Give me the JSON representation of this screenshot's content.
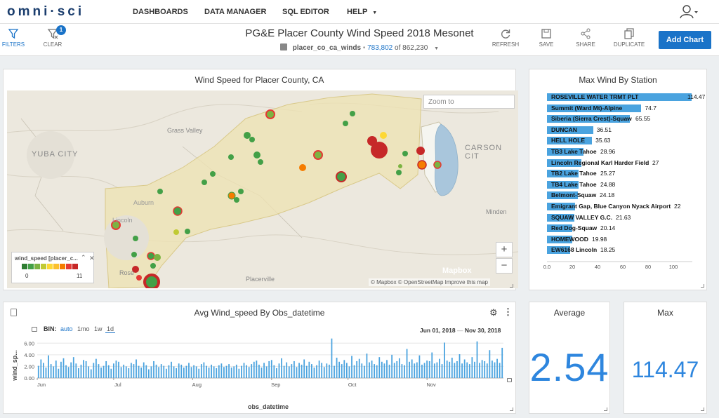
{
  "app": {
    "logo": "omni·sci",
    "nav": [
      "DASHBOARDS",
      "DATA MANAGER",
      "SQL EDITOR",
      "HELP"
    ]
  },
  "toolbar": {
    "filters_label": "FILTERS",
    "clear_label": "CLEAR",
    "filter_count": "1",
    "dashboard_title": "PG&E Placer County Wind Speed 2018 Mesonet",
    "table_name": "placer_co_ca_winds",
    "filtered_count": "783,802",
    "total_text": "of 862,230",
    "refresh_label": "REFRESH",
    "save_label": "SAVE",
    "share_label": "SHARE",
    "duplicate_label": "DUPLICATE",
    "add_chart_label": "Add Chart"
  },
  "map_panel": {
    "title": "Wind Speed for Placer County, CA",
    "zoom_placeholder": "Zoom to",
    "zoom_in": "+",
    "zoom_out": "−",
    "mapbox": "Mapbox",
    "attribution": "© Mapbox  © OpenStreetMap  Improve this map",
    "legend_title": "wind_speed [placer_c...",
    "legend_min": "0",
    "legend_max": "11",
    "legend_colors": [
      "#2e7d32",
      "#43a047",
      "#7cb342",
      "#c0ca33",
      "#fdd835",
      "#fbc02d",
      "#f57c00",
      "#e53935",
      "#c62828"
    ],
    "places": [
      "YUBA CITY",
      "Grass Valley",
      "CARSON CIT",
      "Minden",
      "Placerville",
      "Rose",
      "Auburn",
      "Lincoln"
    ]
  },
  "max_wind_panel": {
    "title": "Max Wind By Station",
    "axis_ticks": [
      "0.0",
      "20",
      "40",
      "60",
      "80",
      "100"
    ]
  },
  "timeseries_panel": {
    "title": "Avg Wind_speed By Obs_datetime",
    "bin_label": "BIN:",
    "bins": [
      "auto",
      "1mo",
      "1w",
      "1d"
    ],
    "active_bin": "1d",
    "range_start": "Jun 01, 2018",
    "range_sep": "—",
    "range_end": "Nov 30, 2018",
    "y_axis_label": "wind_sp...",
    "x_axis_label": "obs_datetime",
    "y_ticks": [
      "6.00",
      "4.00",
      "2.00",
      "0.00"
    ],
    "x_ticks": [
      "Jun",
      "Jul",
      "Aug",
      "Sep",
      "Oct",
      "Nov"
    ]
  },
  "average_panel": {
    "title": "Average",
    "value": "2.54"
  },
  "max_panel": {
    "title": "Max",
    "value": "114.47"
  },
  "chart_data": [
    {
      "type": "bar",
      "title": "Max Wind By Station",
      "orientation": "horizontal",
      "categories": [
        "ROSEVILLE WATER TRMT PLT",
        "Summit (Ward Mt)-Alpine",
        "Siberia (Sierra Crest)-Squaw",
        "DUNCAN",
        "HELL HOLE",
        "TB3 Lake Tahoe",
        "Lincoln Regional Karl Harder Field",
        "TB2 Lake Tahoe",
        "TB4 Lake Tahoe",
        "Belmont-Squaw",
        "Emigrant Gap, Blue Canyon Nyack Airport",
        "SQUAW VALLEY G.C.",
        "Red Dog-Squaw",
        "HOMEWOOD",
        "EW6168 Lincoln"
      ],
      "values": [
        114.47,
        74.7,
        65.55,
        36.51,
        35.63,
        28.96,
        27,
        25.27,
        24.88,
        24.18,
        22,
        21.63,
        20.14,
        19.98,
        18.25
      ],
      "value_labels": [
        "114.47",
        "74.7",
        "65.55",
        "36.51",
        "35.63",
        "28.96",
        "27",
        "25.27",
        "24.88",
        "24.18",
        "22",
        "21.63",
        "20.14",
        "19.98",
        "18.25"
      ],
      "xlim": [
        0,
        115
      ]
    },
    {
      "type": "bar",
      "title": "Avg Wind_speed By Obs_datetime",
      "xlabel": "obs_datetime",
      "ylabel": "wind_sp...",
      "ylim": [
        0,
        7
      ],
      "x_range": [
        "2018-06-01",
        "2018-11-30"
      ],
      "values": [
        2.1,
        3.2,
        2.6,
        1.8,
        3.9,
        2.4,
        2.0,
        3.0,
        1.6,
        2.8,
        3.4,
        2.2,
        1.9,
        2.7,
        3.6,
        2.5,
        1.7,
        2.3,
        3.1,
        2.9,
        2.0,
        1.5,
        2.6,
        3.3,
        2.4,
        1.8,
        2.1,
        2.9,
        2.2,
        1.6,
        2.5,
        3.0,
        2.8,
        1.9,
        2.3,
        2.0,
        1.7,
        2.6,
        2.4,
        3.2,
        2.1,
        1.8,
        2.7,
        2.2,
        1.5,
        2.0,
        2.9,
        2.3,
        1.9,
        2.4,
        2.1,
        1.6,
        2.2,
        2.8,
        2.0,
        1.7,
        2.5,
        2.3,
        1.8,
        2.1,
        2.6,
        1.9,
        2.2,
        2.0,
        1.6,
        2.4,
        2.7,
        2.1,
        1.8,
        2.3,
        2.0,
        1.7,
        2.2,
        2.5,
        1.9,
        2.1,
        2.4,
        1.8,
        2.0,
        2.3,
        1.6,
        2.1,
        2.6,
        2.2,
        1.9,
        2.4,
        2.8,
        3.0,
        2.3,
        1.8,
        2.6,
        2.0,
        2.9,
        3.1,
        2.2,
        1.7,
        2.5,
        3.4,
        2.1,
        2.7,
        2.0,
        2.4,
        2.9,
        1.9,
        2.6,
        2.3,
        3.2,
        2.1,
        2.8,
        2.4,
        1.8,
        2.2,
        3.0,
        2.6,
        1.9,
        2.5,
        2.3,
        6.8,
        2.1,
        3.5,
        2.8,
        2.4,
        3.1,
        2.6,
        2.0,
        3.8,
        2.2,
        2.9,
        3.3,
        2.5,
        2.1,
        4.2,
        2.7,
        3.0,
        2.4,
        2.2,
        3.6,
        2.8,
        2.5,
        3.1,
        2.3,
        4.0,
        2.6,
        2.9,
        3.4,
        2.4,
        2.2,
        5.0,
        2.8,
        3.2,
        2.5,
        2.7,
        3.9,
        2.3,
        2.6,
        3.0,
        2.9,
        4.4,
        2.5,
        2.7,
        3.3,
        2.4,
        6.1,
        3.0,
        2.8,
        3.5,
        2.6,
        2.9,
        4.1,
        2.5,
        3.2,
        2.7,
        2.4,
        3.6,
        2.8,
        6.3,
        2.6,
        3.1,
        2.9,
        2.5,
        4.8,
        3.0,
        2.7,
        3.3,
        2.6,
        5.2
      ]
    }
  ]
}
